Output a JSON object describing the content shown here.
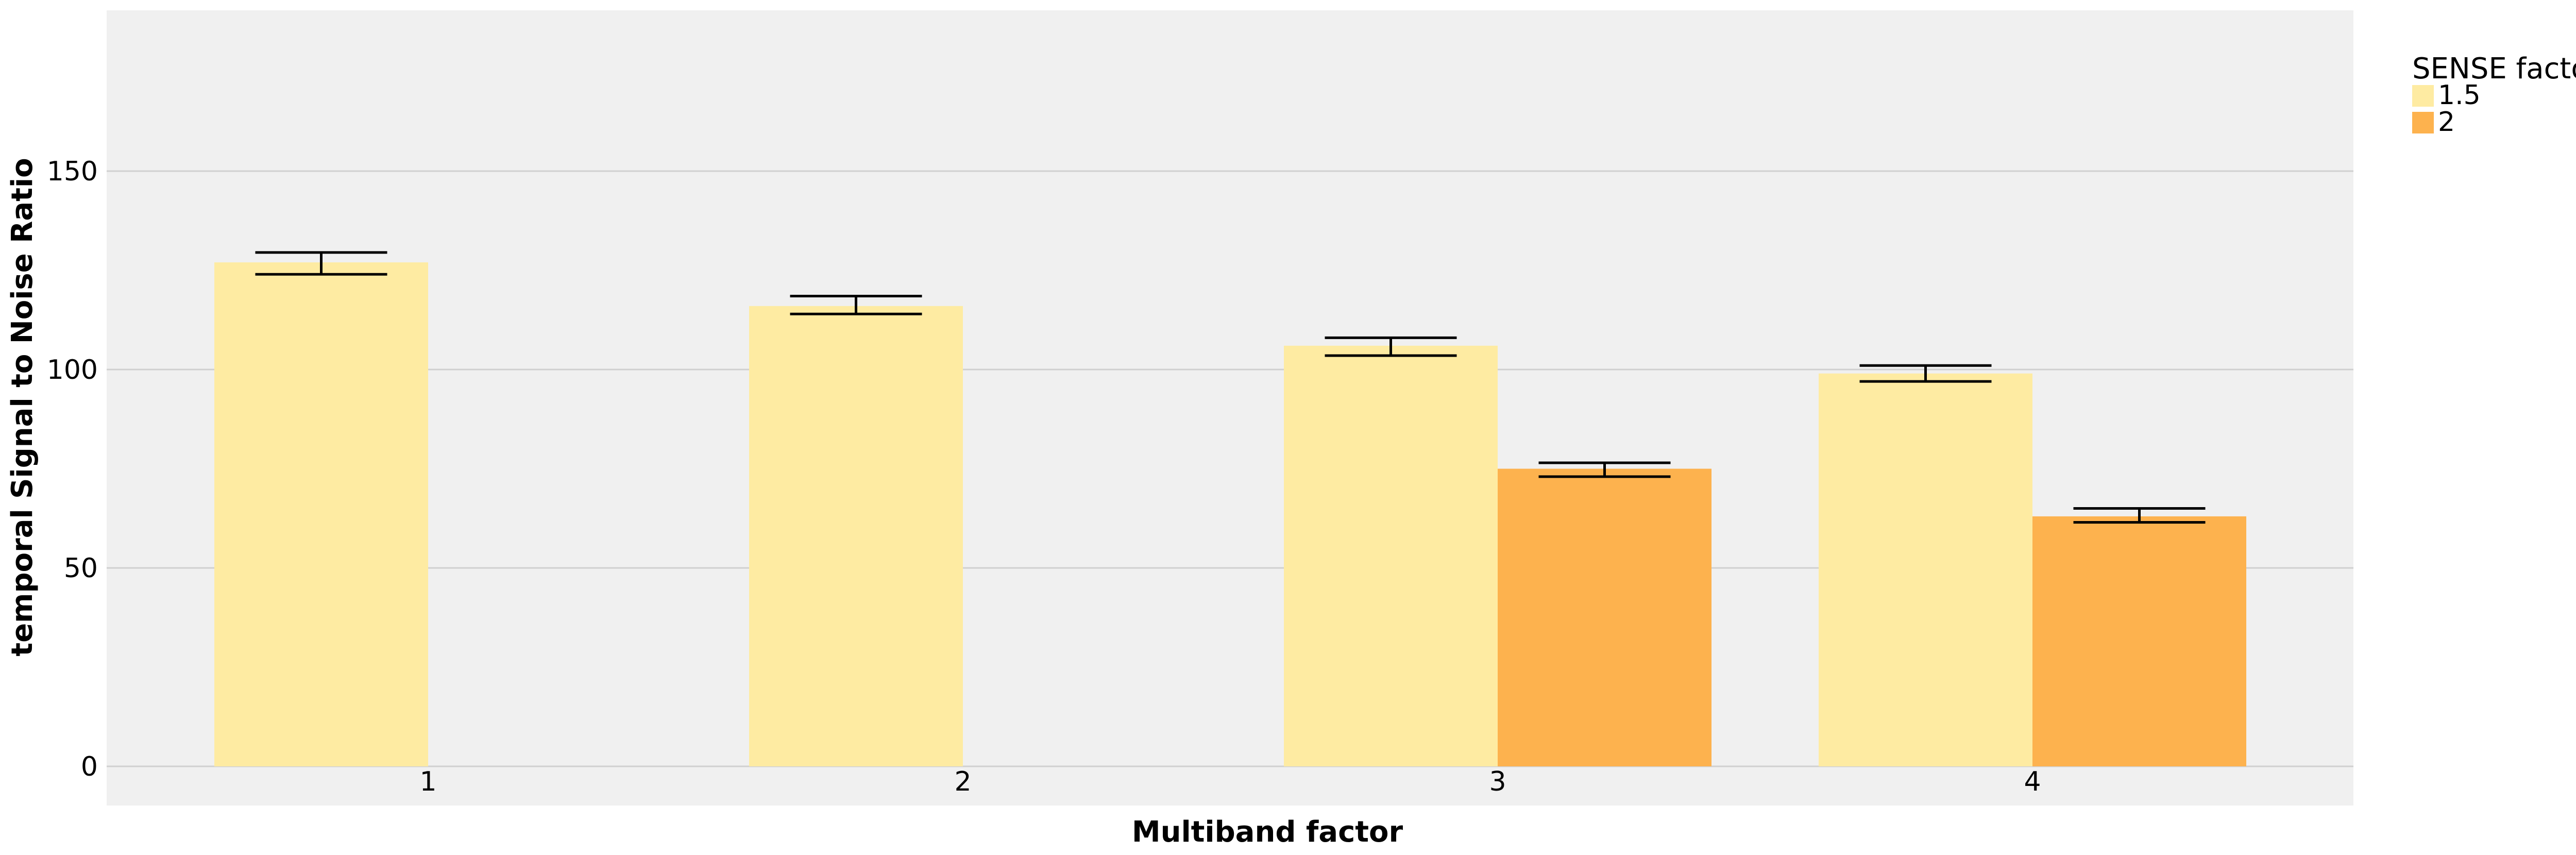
{
  "chart_data": {
    "type": "bar",
    "xlabel": "Multiband factor",
    "ylabel": "temporal Signal to Noise Ratio",
    "categories": [
      "1",
      "2",
      "3",
      "4"
    ],
    "ylim": [
      0,
      190
    ],
    "yticks": [
      0,
      50,
      100,
      150
    ],
    "grid": true,
    "legend": {
      "title": "SENSE factor",
      "position": "top-right outside"
    },
    "series": [
      {
        "name": "1.5",
        "color": "#FEEBA2",
        "values": [
          127,
          116,
          106,
          99
        ],
        "error_low": [
          124,
          114,
          103.5,
          97
        ],
        "error_high": [
          129.5,
          118.5,
          108,
          101
        ]
      },
      {
        "name": "2",
        "color": "#FDB24E",
        "values": [
          null,
          null,
          75,
          63
        ],
        "error_low": [
          null,
          null,
          73,
          61.5
        ],
        "error_high": [
          null,
          null,
          76.5,
          65
        ]
      }
    ],
    "background_color": "#F0F0F0",
    "grid_color": "#D0D0D0"
  }
}
